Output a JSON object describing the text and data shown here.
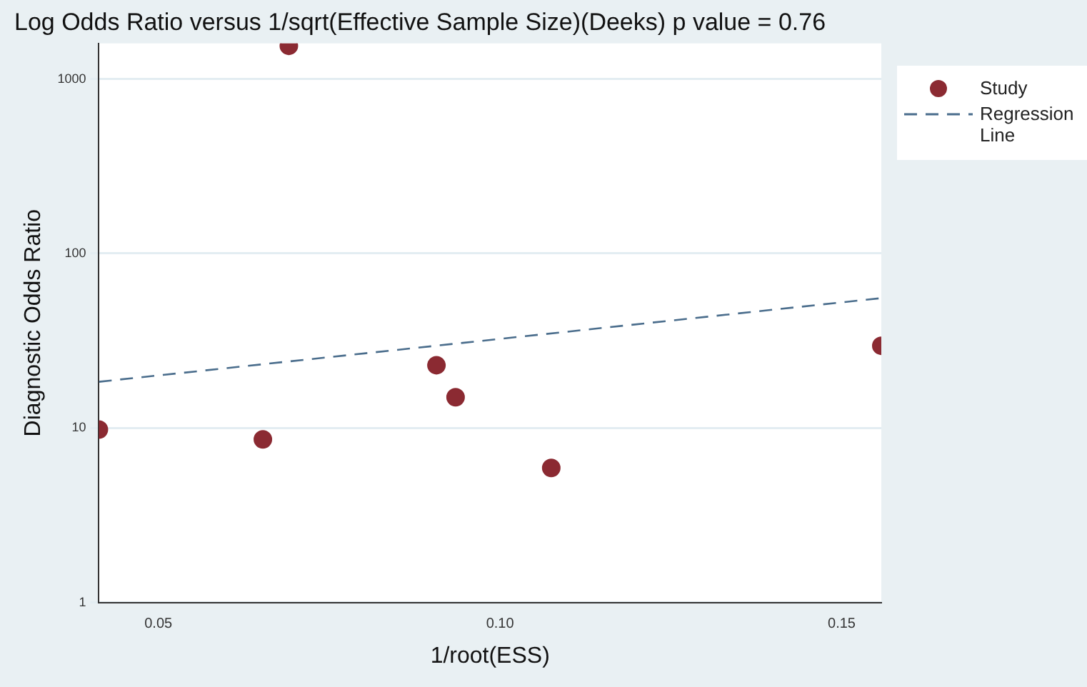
{
  "chart_data": {
    "type": "scatter",
    "title": "Log Odds Ratio versus 1/sqrt(Effective Sample Size)(Deeks) p value = 0.76",
    "xlabel": "1/root(ESS)",
    "ylabel": "Diagnostic Odds Ratio",
    "series": [
      {
        "name": "Study",
        "color": "#8b2a32",
        "marker": "circle",
        "x": [
          0.0413,
          0.0653,
          0.0691,
          0.0907,
          0.0935,
          0.1075,
          0.1558
        ],
        "values": [
          9.8,
          8.6,
          1550,
          22.9,
          15,
          5.9,
          29.6
        ]
      },
      {
        "name": "Regression Line",
        "type": "line",
        "color": "#4a6d8c",
        "line_style": "dashed",
        "marker": "none",
        "x": [
          0.0413,
          0.1558
        ],
        "values": [
          18.4,
          55.5
        ]
      }
    ],
    "xlim": [
      0.0413,
      0.1558
    ],
    "xticks": [
      0.05,
      {
        "value": 0.1,
        "label": "0.10"
      },
      0.15
    ],
    "ylim": [
      1,
      1600
    ],
    "yticks": [
      1,
      10,
      100,
      1000
    ],
    "log": "y",
    "grid": "y",
    "legend": "top right"
  }
}
